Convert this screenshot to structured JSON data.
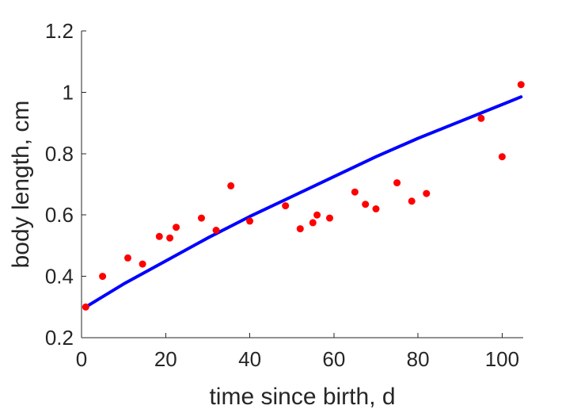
{
  "chart_data": {
    "type": "scatter",
    "title": "",
    "xlabel": "time since birth, d",
    "ylabel": "body length, cm",
    "xlim": [
      0,
      105
    ],
    "ylim": [
      0.2,
      1.2
    ],
    "xticks": [
      0,
      20,
      40,
      60,
      80,
      100
    ],
    "yticks": [
      0.2,
      0.4,
      0.6,
      0.8,
      1.0,
      1.2
    ],
    "xtick_labels": [
      "0",
      "20",
      "40",
      "60",
      "80",
      "100"
    ],
    "ytick_labels": [
      "0.2",
      "0.4",
      "0.6",
      "0.8",
      "1",
      "1.2"
    ],
    "grid": false,
    "legend": false,
    "series": [
      {
        "kind": "scatter",
        "color": "#ff0000",
        "x": [
          1,
          5,
          11,
          14.5,
          18.5,
          21,
          22.5,
          28.5,
          32,
          35.5,
          40,
          48.5,
          52,
          55,
          56,
          59,
          65,
          67.5,
          70,
          75,
          78.5,
          82,
          95,
          100,
          104.5
        ],
        "y": [
          0.3,
          0.4,
          0.46,
          0.44,
          0.53,
          0.525,
          0.56,
          0.59,
          0.55,
          0.695,
          0.58,
          0.63,
          0.555,
          0.575,
          0.6,
          0.59,
          0.675,
          0.635,
          0.62,
          0.705,
          0.645,
          0.67,
          0.915,
          0.79,
          1.025
        ]
      },
      {
        "kind": "line",
        "color": "#0000ff",
        "x": [
          1,
          10,
          20,
          30,
          40,
          50,
          60,
          70,
          80,
          90,
          100,
          104.5
        ],
        "y": [
          0.3,
          0.375,
          0.45,
          0.525,
          0.595,
          0.66,
          0.725,
          0.79,
          0.85,
          0.905,
          0.96,
          0.985
        ]
      }
    ]
  }
}
